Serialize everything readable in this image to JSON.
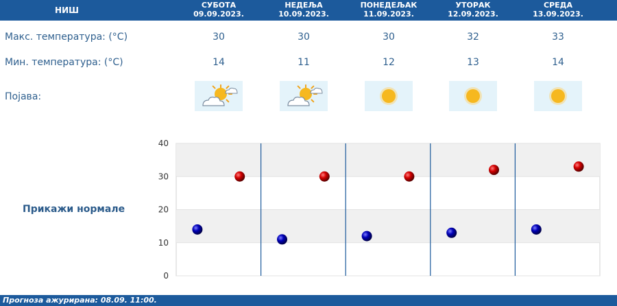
{
  "header": {
    "city": "НИШ",
    "days": [
      {
        "name": "СУБОТА",
        "date": "09.09.2023."
      },
      {
        "name": "НЕДЕЉА",
        "date": "10.09.2023."
      },
      {
        "name": "ПОНЕДЕЉАК",
        "date": "11.09.2023."
      },
      {
        "name": "УТОРАК",
        "date": "12.09.2023."
      },
      {
        "name": "СРЕДА",
        "date": "13.09.2023."
      }
    ]
  },
  "rows": {
    "max_label": "Макс. температура: (°C)",
    "min_label": "Мин. температура: (°C)",
    "phenomenon_label": "Појава:",
    "max": [
      "30",
      "30",
      "30",
      "32",
      "33"
    ],
    "min": [
      "14",
      "11",
      "12",
      "13",
      "14"
    ],
    "icons": [
      "partly-cloudy-sun-icon",
      "partly-cloudy-sun-icon",
      "sun-icon",
      "sun-icon",
      "sun-icon"
    ]
  },
  "normals_button": "Прикажи нормале",
  "footer": "Прогноза ажурирана:  08.09.  11:00.",
  "colors": {
    "header_bg": "#1c5a9c",
    "max_marker": "#cc0000",
    "min_marker": "#0000aa",
    "divider": "#1c5a9c"
  },
  "chart_data": {
    "type": "scatter",
    "categories": [
      "СУБОТА",
      "НЕДЕЉА",
      "ПОНЕДЕЉАК",
      "УТОРАК",
      "СРЕДА"
    ],
    "series": [
      {
        "values": [
          30,
          30,
          30,
          32,
          33
        ]
      },
      {
        "values": [
          14,
          11,
          12,
          13,
          14
        ]
      }
    ],
    "ylim": [
      0,
      40
    ],
    "yticks": [
      "0",
      "10",
      "20",
      "30",
      "40"
    ],
    "grid": true
  }
}
